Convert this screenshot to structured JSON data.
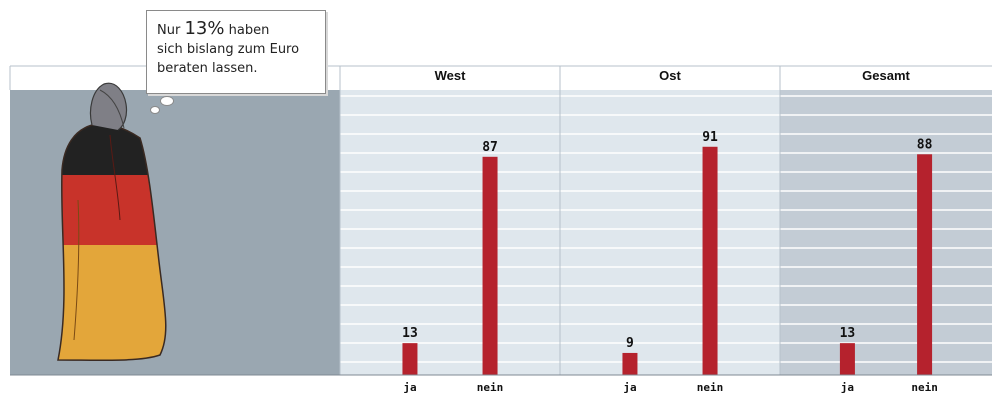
{
  "bubble": {
    "line1_pre": "Nur",
    "line1_big": "13%",
    "line1_post": "haben",
    "line2": "sich bislang zum Euro",
    "line3": "beraten lassen."
  },
  "colors": {
    "bar": "#b5222d",
    "panel_bg": "#dfe7ed",
    "panel_bg_total": "#c3ccd5",
    "figure_bg": "#9aa7b1",
    "grid": "#ffffff",
    "flag_black": "#222222",
    "flag_red": "#c8332a",
    "flag_gold": "#e3a63a"
  },
  "chart_data": [
    {
      "type": "bar",
      "title": "West",
      "categories": [
        "ja",
        "nein"
      ],
      "values": [
        13,
        87
      ],
      "ylim": [
        0,
        100
      ],
      "grid": true
    },
    {
      "type": "bar",
      "title": "Ost",
      "categories": [
        "ja",
        "nein"
      ],
      "values": [
        9,
        91
      ],
      "ylim": [
        0,
        100
      ],
      "grid": true
    },
    {
      "type": "bar",
      "title": "Gesamt",
      "categories": [
        "ja",
        "nein"
      ],
      "values": [
        13,
        88
      ],
      "ylim": [
        0,
        100
      ],
      "grid": true
    }
  ]
}
